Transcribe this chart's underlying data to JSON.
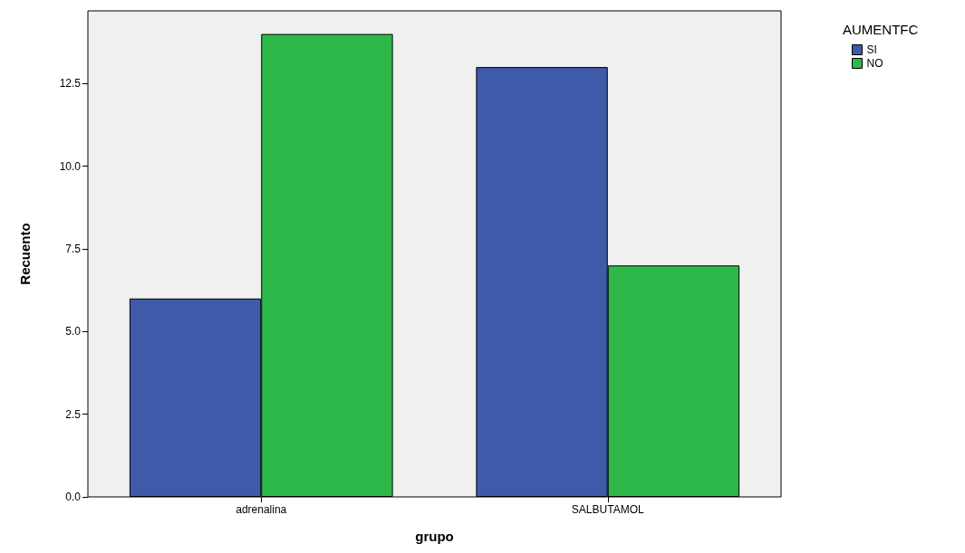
{
  "chart_data": {
    "type": "bar",
    "xlabel": "grupo",
    "ylabel": "Recuento",
    "legend_title": "AUMENTFC",
    "categories": [
      "adrenalina",
      "SALBUTAMOL"
    ],
    "series": [
      {
        "name": "SI",
        "color": "#3f5aa9",
        "values": [
          6,
          13
        ]
      },
      {
        "name": "NO",
        "color": "#2fb84a",
        "values": [
          14,
          7
        ]
      }
    ],
    "ylim": [
      0,
      14.7
    ],
    "yticks": [
      {
        "value": 0,
        "label": "0.0"
      },
      2.5,
      {
        "value": 5,
        "label": "5.0"
      },
      7.5,
      {
        "value": 10,
        "label": "10.0"
      },
      12.5
    ],
    "grid": false,
    "legend": "top right"
  }
}
